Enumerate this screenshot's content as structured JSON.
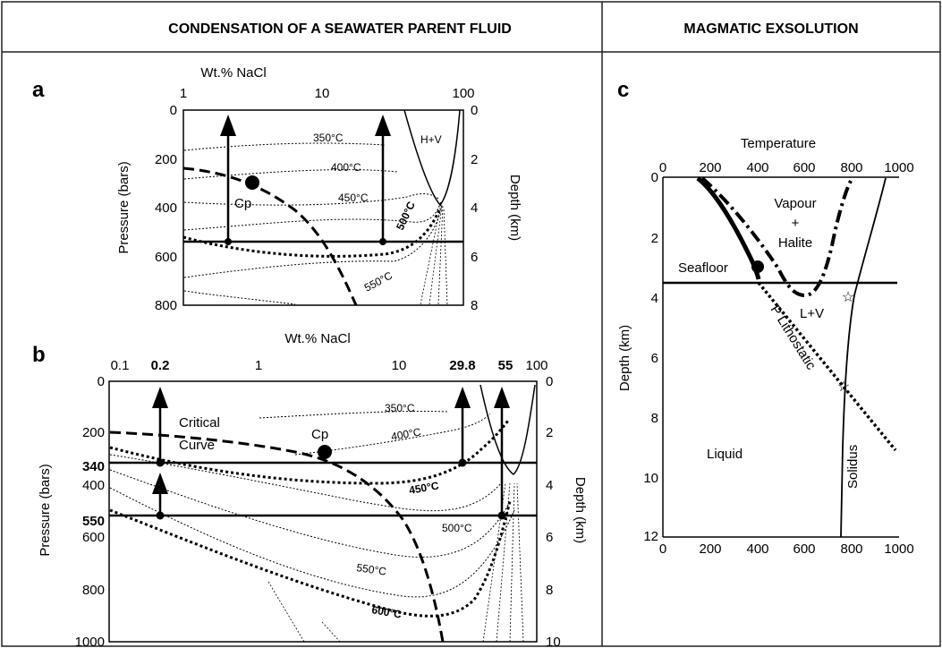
{
  "headers": {
    "left": "CONDENSATION OF A SEAWATER PARENT FLUID",
    "right": "MAGMATIC EXSOLUTION"
  },
  "panel_a": {
    "label": "a",
    "xlabel": "Wt.% NaCl",
    "ylabel": "Pressure (bars)",
    "ylabel2": "Depth (km)",
    "xticks": [
      "1",
      "10",
      "100"
    ],
    "yticks": [
      "0",
      "200",
      "400",
      "600",
      "800"
    ],
    "dticks": [
      "0",
      "2",
      "4",
      "6",
      "8"
    ],
    "iso": [
      "350°C",
      "400°C",
      "450°C",
      "500°C",
      "550°C"
    ],
    "hv": "H+V",
    "cp": "Cp"
  },
  "panel_b": {
    "label": "b",
    "xlabel": "Wt.% NaCl",
    "ylabel": "Pressure (bars)",
    "ylabel2": "Depth (km)",
    "xticks": [
      "0.1",
      "1",
      "10",
      "100"
    ],
    "xticks_bold": [
      "0.2",
      "29.8",
      "55"
    ],
    "yticks": [
      "0",
      "200",
      "400",
      "600",
      "800",
      "1000"
    ],
    "yticks_bold": [
      "340",
      "550"
    ],
    "dticks": [
      "0",
      "2",
      "4",
      "6",
      "8",
      "10"
    ],
    "iso": [
      "350°C",
      "400°C",
      "450°C",
      "500°C",
      "550°C",
      "600°C"
    ],
    "critical1": "Critical",
    "critical2": "Curve",
    "cp": "Cp"
  },
  "panel_c": {
    "label": "c",
    "xlabel": "Temperature",
    "ylabel": "Depth (km)",
    "xticks_top": [
      "0",
      "200",
      "400",
      "600",
      "800",
      "1000"
    ],
    "xticks_bottom": [
      "0",
      "200",
      "400",
      "600",
      "800",
      "1000"
    ],
    "yticks": [
      "0",
      "2",
      "4",
      "6",
      "8",
      "10",
      "12"
    ],
    "vapour": "Vapour",
    "plus": "+",
    "halite": "Halite",
    "seafloor": "Seafloor",
    "lv": "L+V",
    "plith": "P Lithostatic",
    "liquid": "Liquid",
    "solidus": "Solidus"
  }
}
